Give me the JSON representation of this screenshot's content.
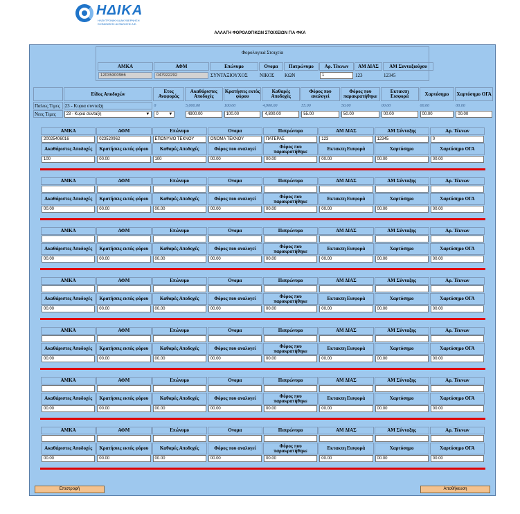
{
  "logo": {
    "name": "ΗΔΙΚΑ",
    "sub1": "ΗΛΕΚΤΡΟΝΙΚΗ ΔΙΑΚΥΒΕΡΝΗΣΗ",
    "sub2": "ΚΟΙΝΩΝΙΚΗΣ ΑΣΦΑΛΙΣΗΣ Α.Ε."
  },
  "page_title": "ΑΛΛΑΓΗ ΦΟΡΟΛΟΓΙΚΩΝ ΣΤΟΙΧΕΙΩΝ ΓΙΑ ΦΚΑ",
  "tax_section": {
    "title": "Φορολογικά Στοιχεία",
    "headers": [
      "ΑΜΚΑ",
      "ΑΦΜ",
      "Επώνυμο",
      "Ονομα",
      "Πατρώνυμο",
      "Αρ. Τέκνων",
      "ΑΜ ΔΙΑΣ",
      "ΑΜ Συνταξιούχου"
    ],
    "amka": "12035300966",
    "afm": "047922292",
    "surname": "ΣΥΝΤΑΞΙΟΥΧΟΣ",
    "name": "ΝΙΚΟΣ",
    "father": "ΚΩΝ",
    "children": "1",
    "am_dias": "123",
    "am_pensioner": "12345"
  },
  "earnings": {
    "headers": [
      "Είδος Αποδοχών",
      "Ετος Αναφοράς",
      "Ακαθάριστες Αποδοχές",
      "Κρατήσεις εκτός φόρου",
      "Καθαρές Αποδοχές",
      "Φόρος που αναλογεί",
      "Φόρος που παρακρατήθηκε",
      "Εκτακτη Εισφορά",
      "Χαρτόσημο",
      "Χαρτόσημο ΟΓΑ"
    ],
    "old_label": "Παλιες Τιμες",
    "new_label": "Νεες Τιμες",
    "old": {
      "type": "23 - Κυρια συνταξη",
      "year": "0",
      "gross": "5,000.00",
      "deductions": "100.00",
      "net": "4,900.00",
      "tax_due": "55.00",
      "tax_withheld": "50.00",
      "extra": "00.00",
      "stamp": "00.00",
      "stamp_oga": "00.00"
    },
    "new": {
      "type": "23 - Κυρια συνταξη",
      "year": "0",
      "gross": "4900.00",
      "deductions": "100.00",
      "net": "4,800.00",
      "tax_due": "55.00",
      "tax_withheld": "50.00",
      "extra": "00.00",
      "stamp": "00.00",
      "stamp_oga": "00.00"
    }
  },
  "child_headers": {
    "top": [
      "ΑΜΚΑ",
      "ΑΦΜ",
      "Επώνυμο",
      "Ονομα",
      "Πατρώνυμο",
      "ΑΜ ΔΙΑΣ",
      "ΑΜ Σύνταξης",
      "Αρ. Τέκνων"
    ],
    "bottom": [
      "Ακαθάριστες Αποδοχές",
      "Κρατήσεις εκτός φόρου",
      "Καθαρές Αποδοχές",
      "Φόρος που αναλογεί",
      "Φόρος που παρακρατήθηκε",
      "Εκτακτη Εισφορά",
      "Χαρτόσημο",
      "Χαρτόσημο ΟΓΑ"
    ]
  },
  "child_blocks": [
    {
      "top": [
        "20025406016",
        "023520962",
        "ΕΠΩΝΥΜΟ ΤΕΚΝΟΥ",
        "ΟΝΟΜΑ ΤΕΚΝΟΥ",
        "ΠΑΤΕΡΑΣ",
        "123",
        "12345",
        "0"
      ],
      "bottom": [
        "100",
        "00.00",
        "100",
        "00.00",
        "00.00",
        "00.00",
        "00.00",
        "00.00"
      ]
    },
    {
      "top": [
        "",
        "",
        "",
        "",
        "",
        "",
        "",
        ""
      ],
      "bottom": [
        "00.00",
        "00.00",
        "00.00",
        "00.00",
        "00.00",
        "00.00",
        "00.00",
        "00.00"
      ]
    },
    {
      "top": [
        "",
        "",
        "",
        "",
        "",
        "",
        "",
        ""
      ],
      "bottom": [
        "00.00",
        "00.00",
        "00.00",
        "00.00",
        "00.00",
        "00.00",
        "00.00",
        "00.00"
      ]
    },
    {
      "top": [
        "",
        "",
        "",
        "",
        "",
        "",
        "",
        ""
      ],
      "bottom": [
        "00.00",
        "00.00",
        "00.00",
        "00.00",
        "00.00",
        "00.00",
        "00.00",
        "00.00"
      ]
    },
    {
      "top": [
        "",
        "",
        "",
        "",
        "",
        "",
        "",
        ""
      ],
      "bottom": [
        "00.00",
        "00.00",
        "00.00",
        "00.00",
        "00.00",
        "00.00",
        "00.00",
        "00.00"
      ]
    },
    {
      "top": [
        "",
        "",
        "",
        "",
        "",
        "",
        "",
        ""
      ],
      "bottom": [
        "00.00",
        "00.00",
        "00.00",
        "00.00",
        "00.00",
        "00.00",
        "00.00",
        "00.00"
      ]
    },
    {
      "top": [
        "",
        "",
        "",
        "",
        "",
        "",
        "",
        ""
      ],
      "bottom": [
        "00.00",
        "00.00",
        "00.00",
        "00.00",
        "00.00",
        "00.00",
        "00.00",
        "00.00"
      ]
    }
  ],
  "buttons": {
    "back": "Επιστροφή",
    "save": "Αποθήκευση"
  }
}
